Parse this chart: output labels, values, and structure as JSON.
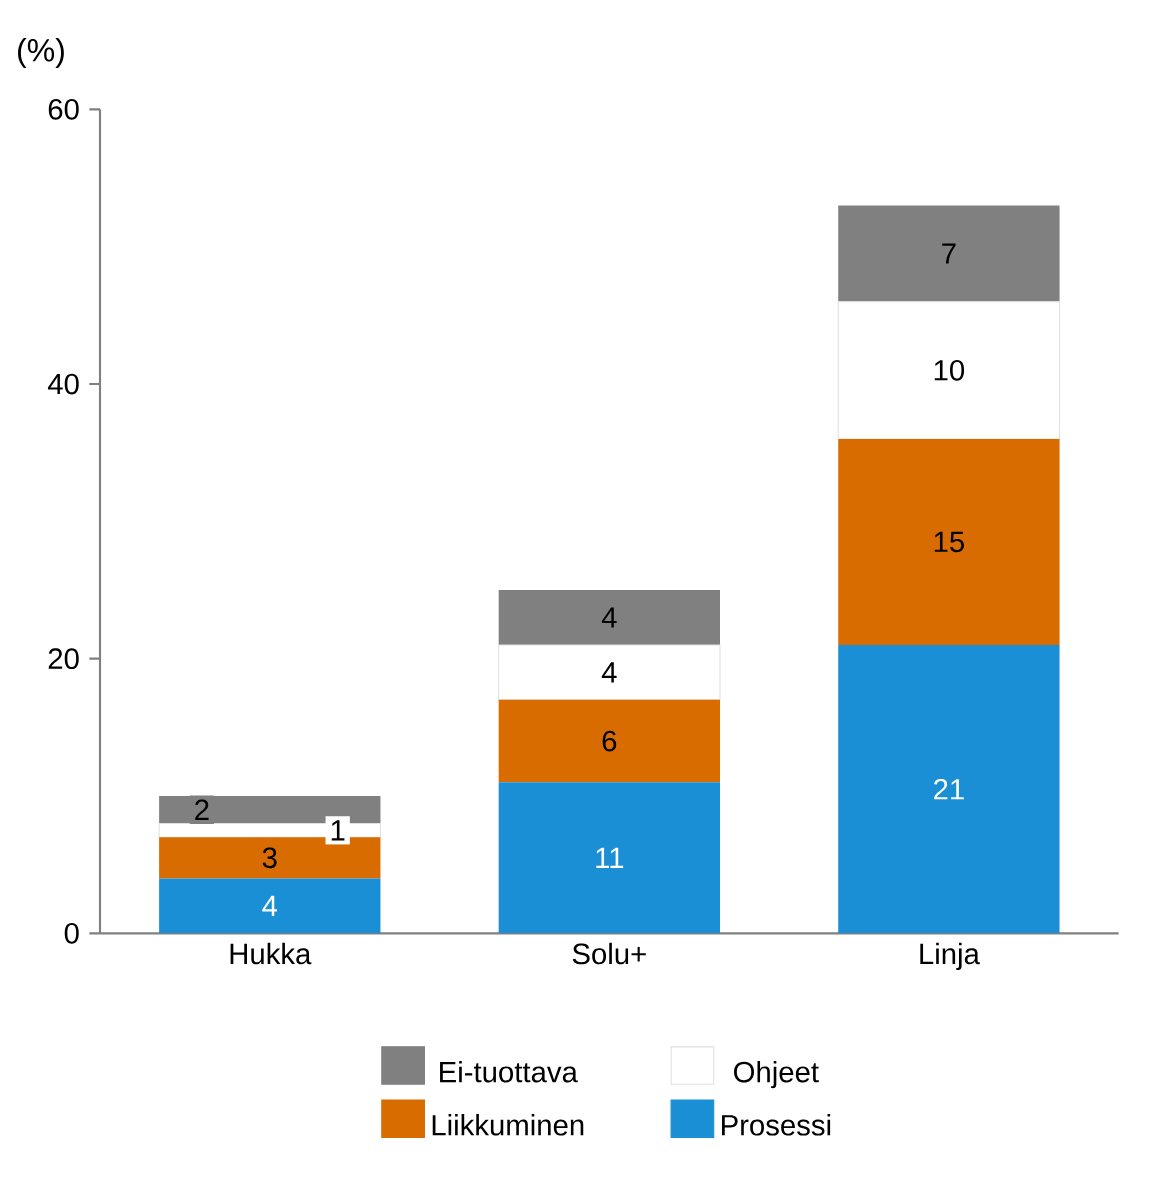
{
  "chart_data": {
    "type": "bar",
    "stacked": true,
    "ylabel": "(%)",
    "categories": [
      "Hukka",
      "Solu+",
      "Linja"
    ],
    "series": [
      {
        "name": "Prosessi",
        "color": "#1a8fd6",
        "values": [
          4,
          11,
          21
        ]
      },
      {
        "name": "Liikkuminen",
        "color": "#d96c00",
        "values": [
          3,
          6,
          15
        ]
      },
      {
        "name": "Ohjeet",
        "color": "#ffffff",
        "values": [
          1,
          4,
          10
        ]
      },
      {
        "name": "Ei-tuottava",
        "color": "#808080",
        "values": [
          2,
          4,
          7
        ]
      }
    ],
    "ylim": [
      0,
      60
    ],
    "yticks": [
      0,
      20,
      40,
      60
    ],
    "data_labels": true,
    "legend": "bottom"
  }
}
